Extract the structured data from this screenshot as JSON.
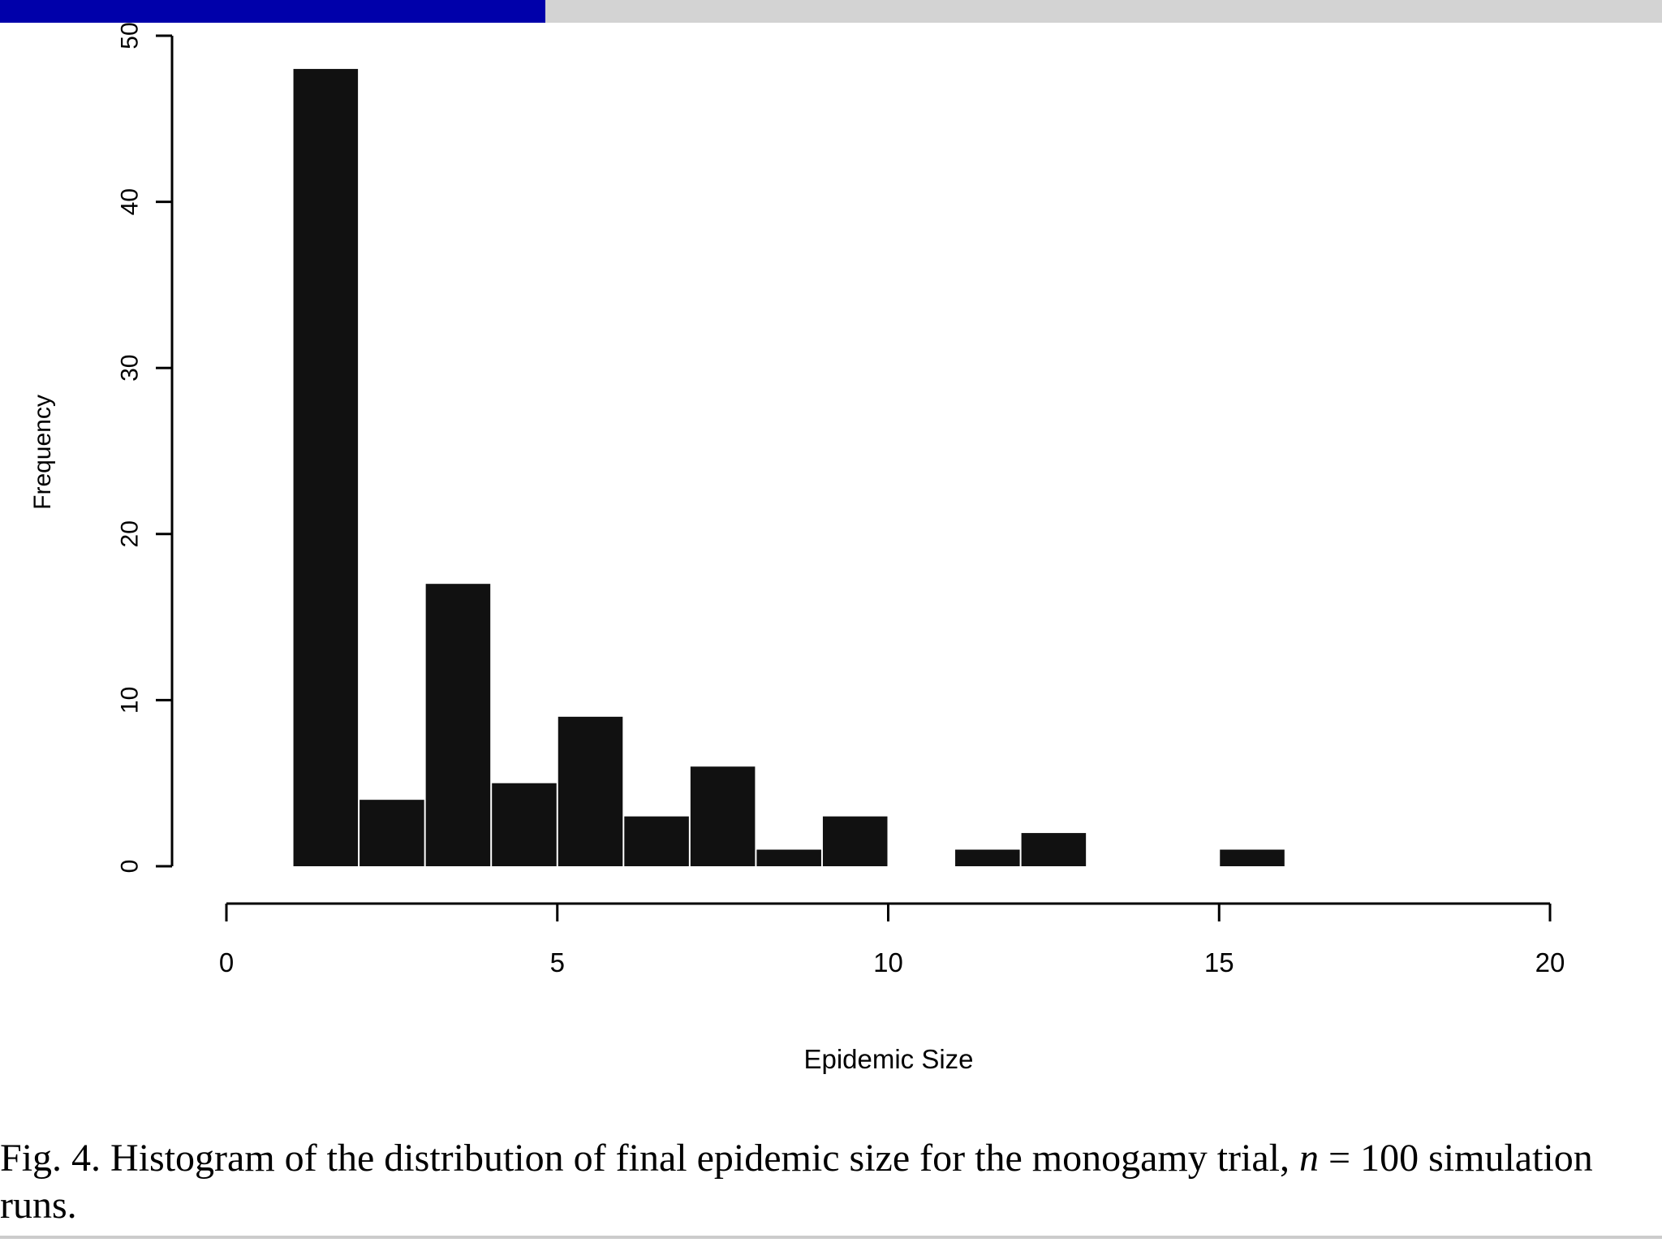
{
  "slide_progress": {
    "fraction": 0.328,
    "fill_color": "#0000aa",
    "track_color": "#d3d3d3"
  },
  "chart_data": {
    "type": "bar",
    "bin_edges": [
      1,
      2,
      3,
      4,
      5,
      6,
      7,
      8,
      9,
      10,
      11,
      12,
      13,
      14,
      15,
      16
    ],
    "values": [
      48,
      4,
      17,
      5,
      9,
      3,
      6,
      1,
      3,
      0,
      1,
      2,
      0,
      0,
      1
    ],
    "xlabel": "Epidemic Size",
    "ylabel": "Frequency",
    "xlim": [
      0,
      20
    ],
    "ylim": [
      0,
      50
    ],
    "xticks": [
      0,
      5,
      10,
      15,
      20
    ],
    "yticks": [
      0,
      10,
      20,
      30,
      40,
      50
    ],
    "bar_color": "#111111",
    "grid": false
  },
  "caption": {
    "prefix": "Fig. 4. Histogram of the distribution of final epidemic size for the monogamy trial, ",
    "n_symbol": "n",
    "suffix": " = 100 simulation runs."
  }
}
